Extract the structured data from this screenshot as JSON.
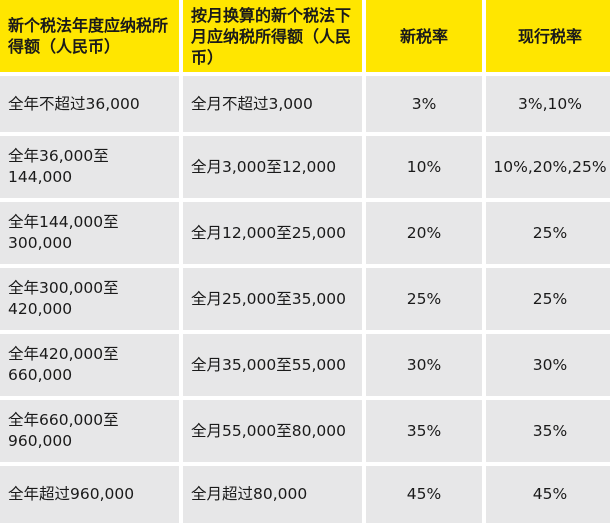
{
  "table": {
    "headers": [
      "新个税法年度应纳税所得额（人民币）",
      "按月换算的新个税法下月应纳税所得额（人民币）",
      "新税率",
      "现行税率"
    ],
    "rows": [
      [
        "全年不超过36,000",
        "全月不超过3,000",
        "3%",
        "3%,10%"
      ],
      [
        "全年36,000至144,000",
        "全月3,000至12,000",
        "10%",
        "10%,20%,25%"
      ],
      [
        "全年144,000至300,000",
        "全月12,000至25,000",
        "20%",
        "25%"
      ],
      [
        "全年300,000至420,000",
        "全月25,000至35,000",
        "25%",
        "25%"
      ],
      [
        "全年420,000至660,000",
        "全月35,000至55,000",
        "30%",
        "30%"
      ],
      [
        "全年660,000至960,000",
        "全月55,000至80,000",
        "35%",
        "35%"
      ],
      [
        "全年超过960,000",
        "全月超过80,000",
        "45%",
        "45%"
      ]
    ]
  },
  "colors": {
    "header_background": "#ffe600",
    "row_background": "#e7e7e8",
    "text": "#1a1a1a"
  }
}
